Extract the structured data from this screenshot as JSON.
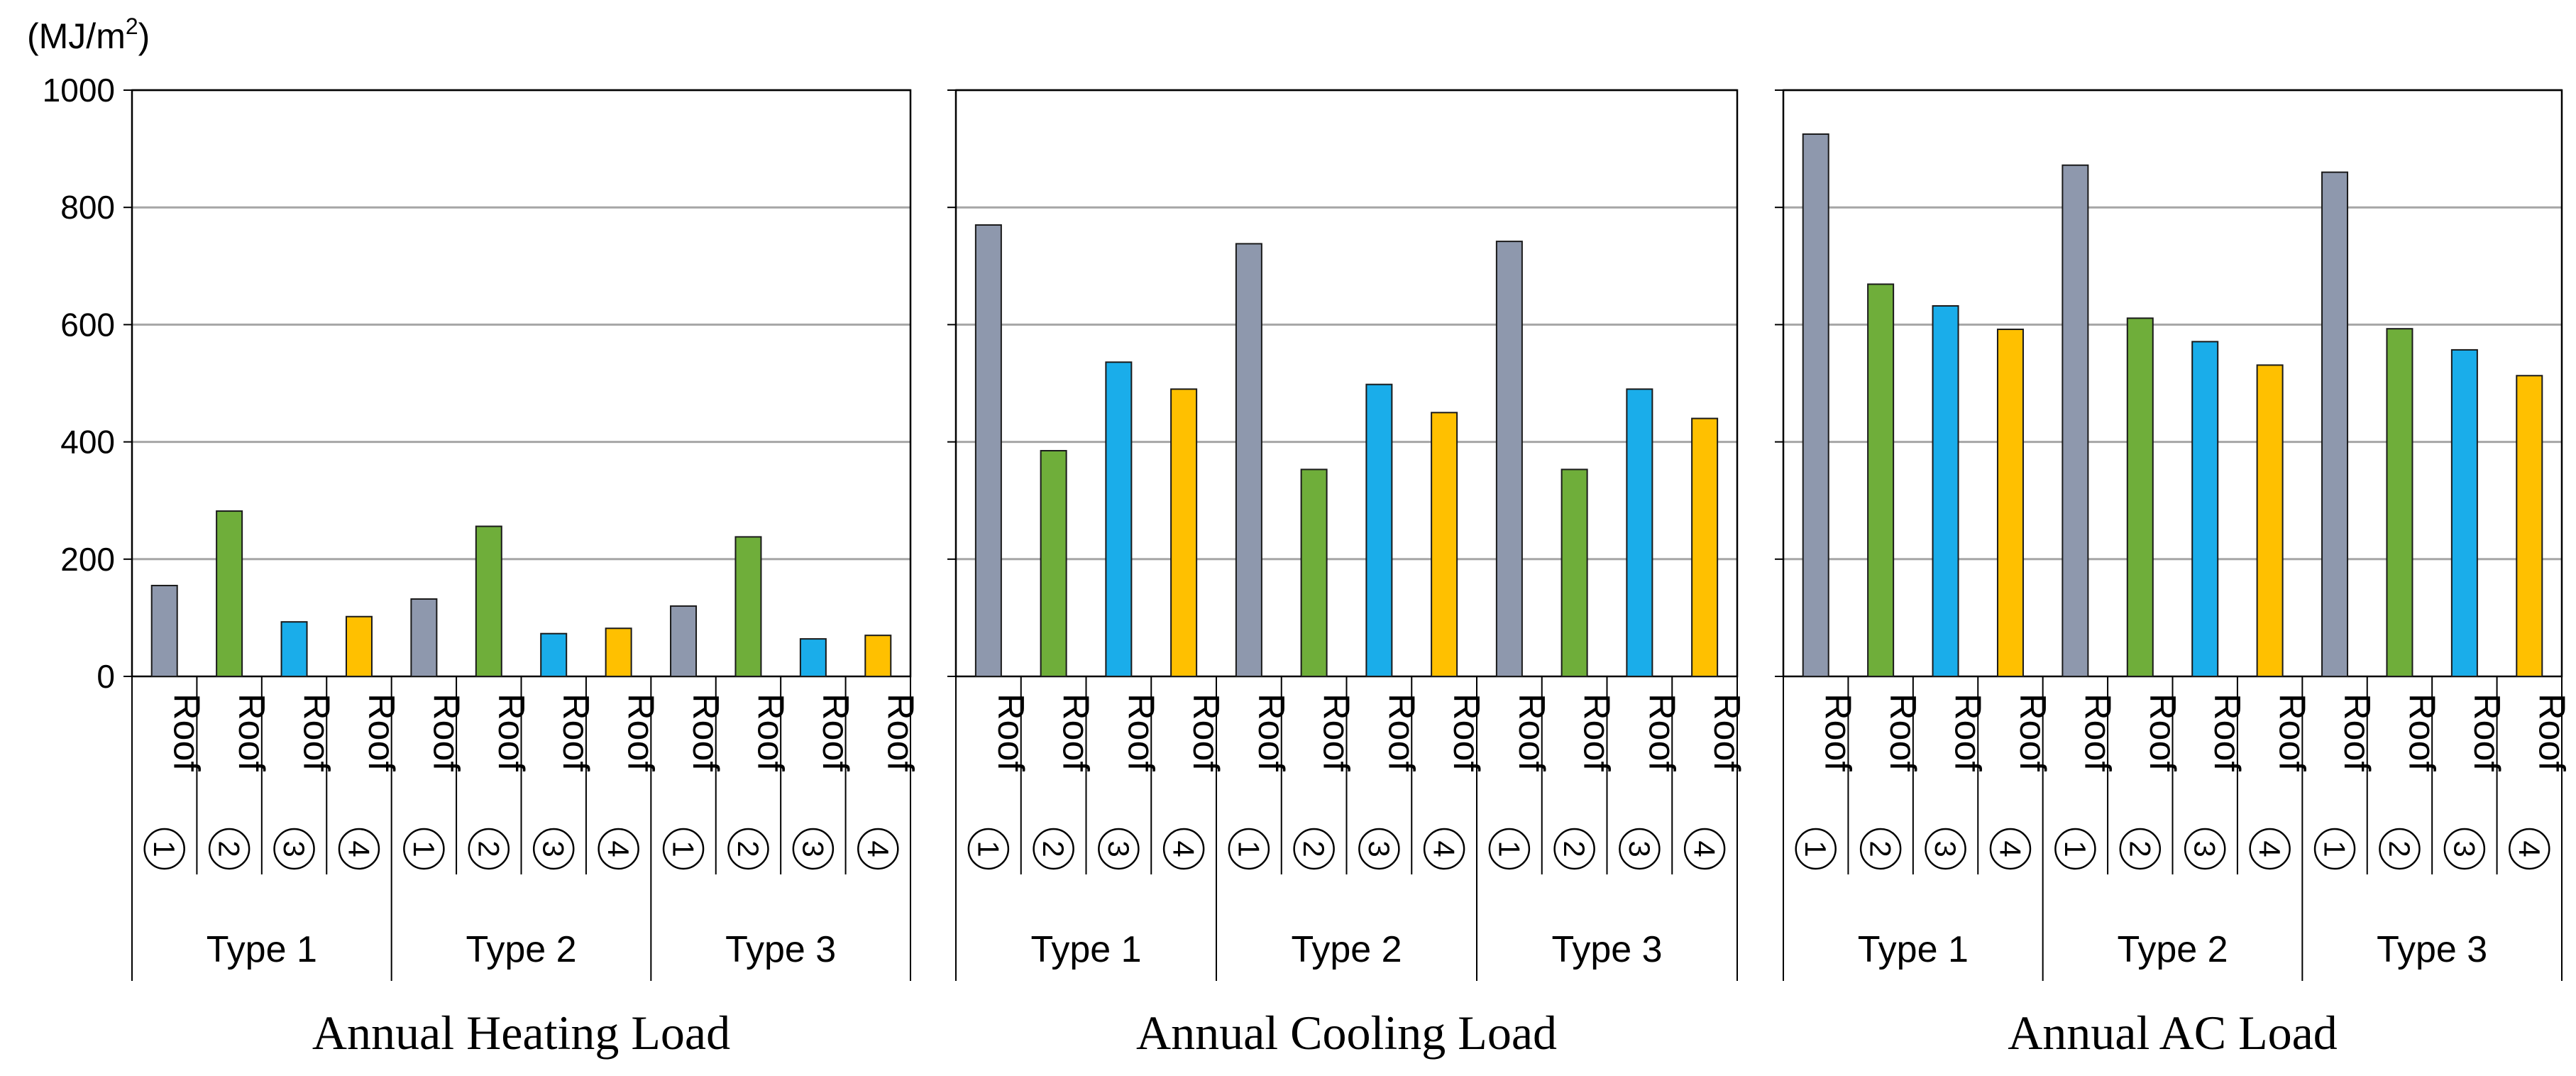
{
  "unit_label": "(MJ/m2)",
  "unit_base": "(MJ/m",
  "unit_sup": "2",
  "unit_close": ")",
  "colors": {
    "roof1": "#8e98ad",
    "roof2": "#6fae3a",
    "roof3": "#1aadea",
    "roof4": "#ffc000",
    "grid": "#a6a6a6",
    "axis": "#000000"
  },
  "chart_data": [
    {
      "type": "bar",
      "title": "Annual Heating Load",
      "ylabel": "(MJ/m2)",
      "ylim": [
        0,
        1000
      ],
      "yticks": [
        "0",
        "200",
        "400",
        "600",
        "800",
        "1000"
      ],
      "grid": true,
      "groups": [
        "Type 1",
        "Type 2",
        "Type 3"
      ],
      "category_word": "Roof",
      "series": [
        {
          "name": "Roof 1",
          "symbol": "1",
          "color": "#8e98ad",
          "values": [
            155,
            132,
            120
          ]
        },
        {
          "name": "Roof 2",
          "symbol": "2",
          "color": "#6fae3a",
          "values": [
            282,
            256,
            238
          ]
        },
        {
          "name": "Roof 3",
          "symbol": "3",
          "color": "#1aadea",
          "values": [
            93,
            73,
            64
          ]
        },
        {
          "name": "Roof 4",
          "symbol": "4",
          "color": "#ffc000",
          "values": [
            102,
            82,
            70
          ]
        }
      ]
    },
    {
      "type": "bar",
      "title": "Annual Cooling Load",
      "ylabel": "(MJ/m2)",
      "ylim": [
        0,
        1000
      ],
      "yticks": [
        "0",
        "200",
        "400",
        "600",
        "800",
        "1000"
      ],
      "grid": true,
      "groups": [
        "Type 1",
        "Type 2",
        "Type 3"
      ],
      "category_word": "Roof",
      "series": [
        {
          "name": "Roof 1",
          "symbol": "1",
          "color": "#8e98ad",
          "values": [
            770,
            738,
            742
          ]
        },
        {
          "name": "Roof 2",
          "symbol": "2",
          "color": "#6fae3a",
          "values": [
            385,
            353,
            353
          ]
        },
        {
          "name": "Roof 3",
          "symbol": "3",
          "color": "#1aadea",
          "values": [
            536,
            498,
            490
          ]
        },
        {
          "name": "Roof 4",
          "symbol": "4",
          "color": "#ffc000",
          "values": [
            490,
            450,
            440
          ]
        }
      ]
    },
    {
      "type": "bar",
      "title": "Annual AC Load",
      "ylabel": "(MJ/m2)",
      "ylim": [
        0,
        1000
      ],
      "yticks": [
        "0",
        "200",
        "400",
        "600",
        "800",
        "1000"
      ],
      "grid": true,
      "groups": [
        "Type 1",
        "Type 2",
        "Type 3"
      ],
      "category_word": "Roof",
      "series": [
        {
          "name": "Roof 1",
          "symbol": "1",
          "color": "#8e98ad",
          "values": [
            925,
            872,
            860
          ]
        },
        {
          "name": "Roof 2",
          "symbol": "2",
          "color": "#6fae3a",
          "values": [
            669,
            611,
            593
          ]
        },
        {
          "name": "Roof 3",
          "symbol": "3",
          "color": "#1aadea",
          "values": [
            632,
            571,
            557
          ]
        },
        {
          "name": "Roof 4",
          "symbol": "4",
          "color": "#ffc000",
          "values": [
            592,
            531,
            513
          ]
        }
      ]
    }
  ]
}
